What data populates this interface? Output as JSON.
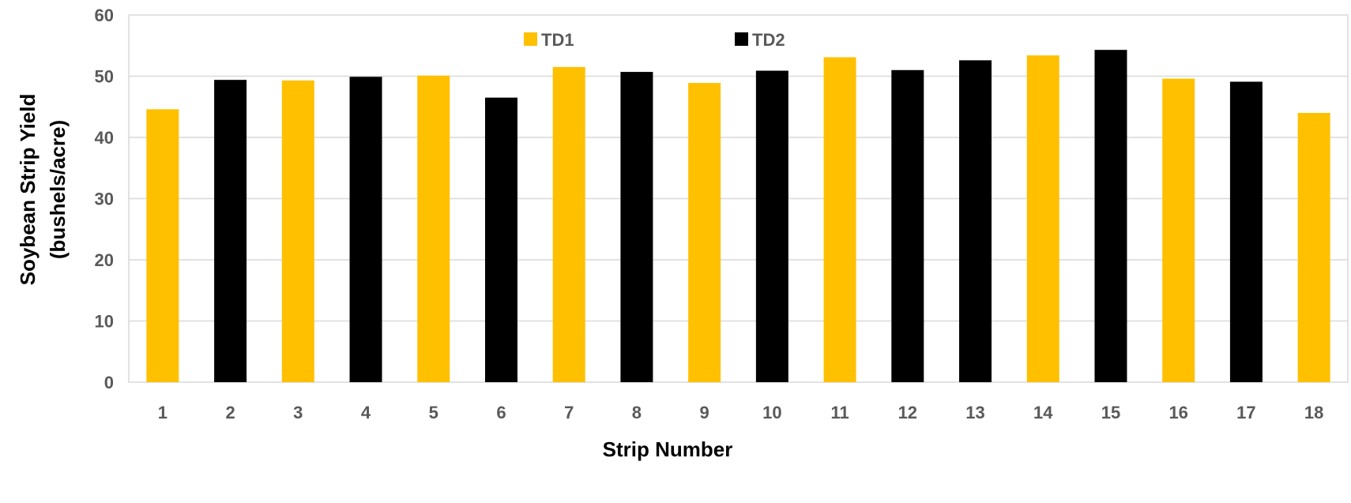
{
  "chart_data": {
    "type": "bar",
    "categories": [
      "1",
      "2",
      "3",
      "4",
      "5",
      "6",
      "7",
      "8",
      "9",
      "10",
      "11",
      "12",
      "13",
      "14",
      "15",
      "16",
      "17",
      "18"
    ],
    "values": [
      44.6,
      49.4,
      49.3,
      49.9,
      50.1,
      46.5,
      51.5,
      50.7,
      48.9,
      50.9,
      53.1,
      51.0,
      52.6,
      53.4,
      54.3,
      49.6,
      49.1,
      44.0
    ],
    "bar_series": [
      "TD1",
      "TD2",
      "TD1",
      "TD2",
      "TD1",
      "TD2",
      "TD1",
      "TD2",
      "TD1",
      "TD2",
      "TD1",
      "TD2",
      "TD2",
      "TD1",
      "TD2",
      "TD1",
      "TD2",
      "TD1"
    ],
    "series": [
      {
        "name": "TD1",
        "color": "#FFC000"
      },
      {
        "name": "TD2",
        "color": "#000000"
      }
    ],
    "title": "",
    "xlabel": "Strip Number",
    "ylabel_line1": "Soybean Strip Yield",
    "ylabel_line2": "(bushels/acre)",
    "ylim": [
      0,
      60
    ],
    "yticks": [
      "0",
      "10",
      "20",
      "30",
      "40",
      "50",
      "60"
    ],
    "grid": true,
    "legend_position": "top-center"
  }
}
